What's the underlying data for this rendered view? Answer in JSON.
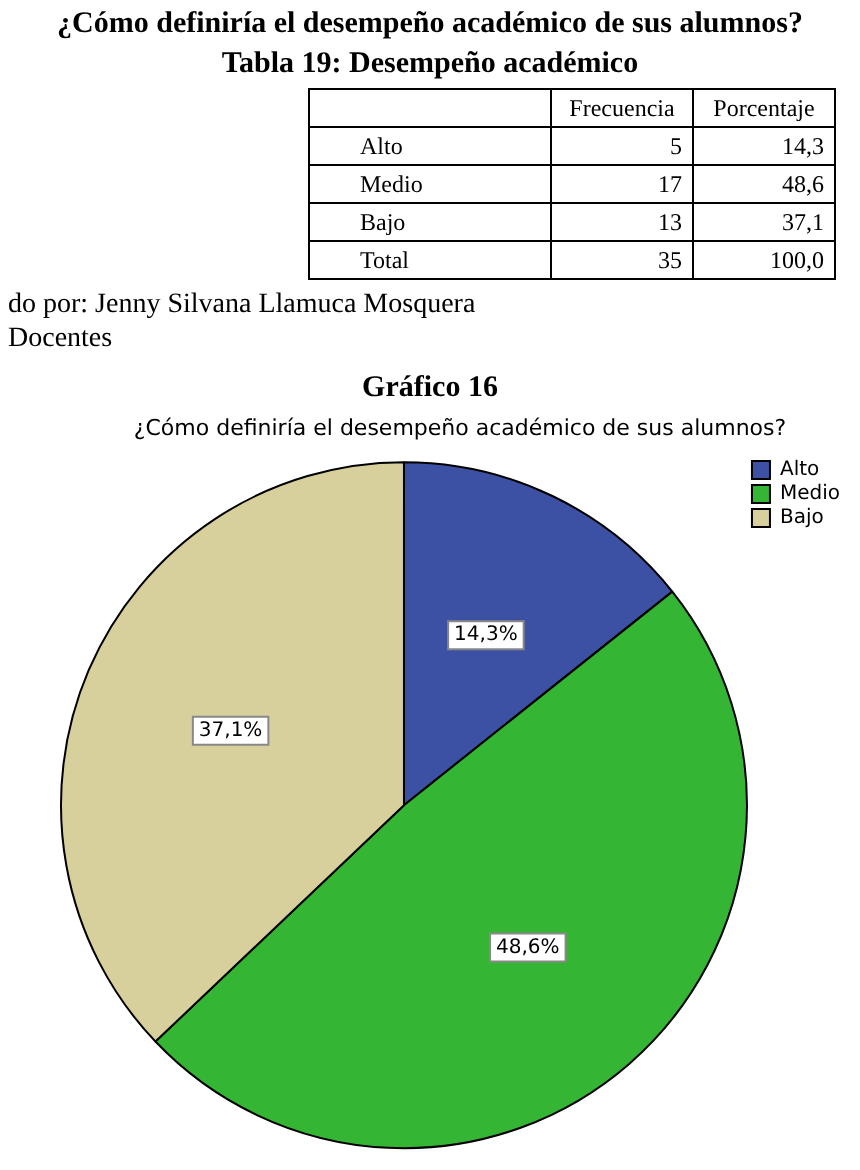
{
  "chart_data": {
    "type": "pie",
    "title": "¿Cómo definiría el desempeño académico de sus alumnos?",
    "categories": [
      "Alto",
      "Medio",
      "Bajo"
    ],
    "values": [
      14.3,
      48.6,
      37.1
    ],
    "colors": [
      "#3c51a3",
      "#34b534",
      "#d7d09c"
    ],
    "value_labels": [
      "14,3%",
      "48,6%",
      "37,1%"
    ],
    "legend": "top right",
    "annotations": [
      "¿Cómo definiría el desempeño académico de sus alumnos?",
      "Tabla 19: Desempeño académico",
      "\tFrecuencia\tPorcentaje",
      "Alto\t5\t14,3",
      "Medio\t17\t48,6",
      "Bajo\t13\t37,1",
      "Total\t35\t100,0",
      "do por: Jenny Silvana Llamuca Mosquera",
      "Docentes",
      "Gráfico 16"
    ]
  }
}
